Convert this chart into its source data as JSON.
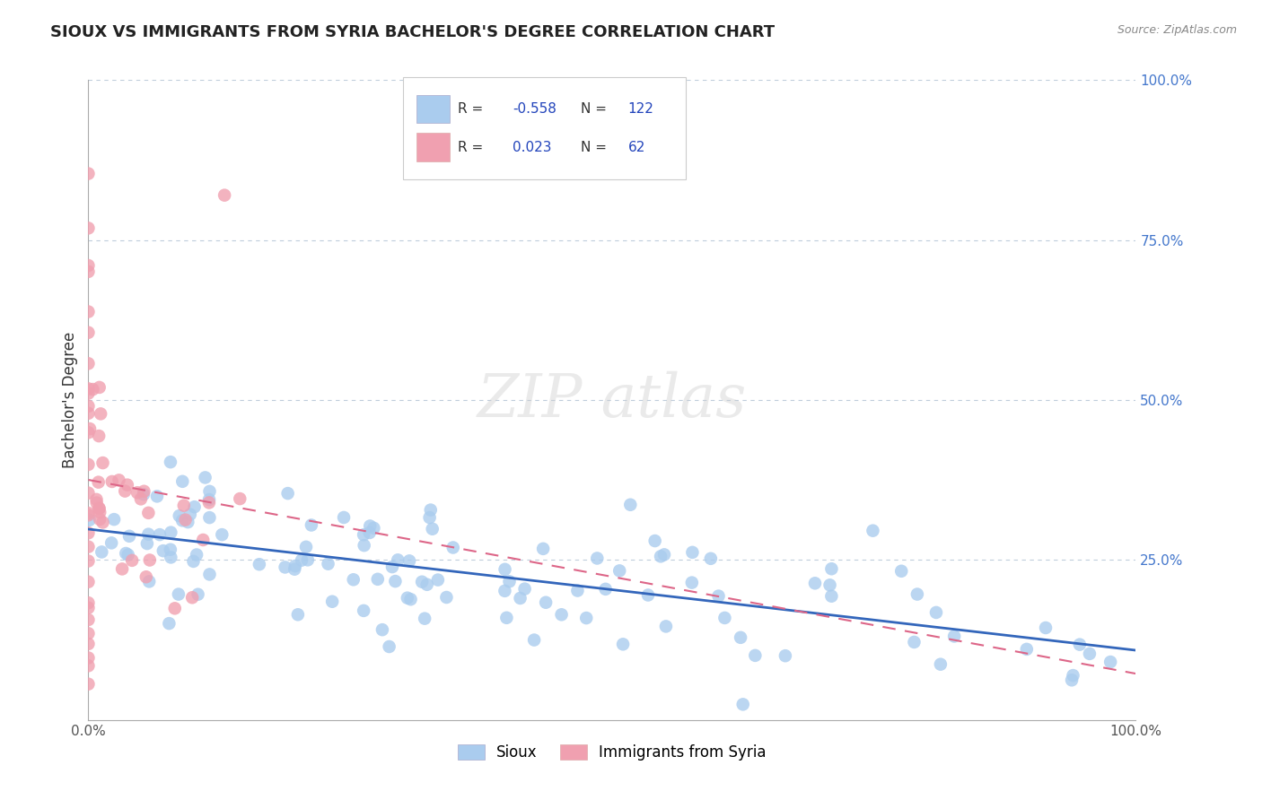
{
  "title": "SIOUX VS IMMIGRANTS FROM SYRIA BACHELOR'S DEGREE CORRELATION CHART",
  "source": "Source: ZipAtlas.com",
  "ylabel": "Bachelor's Degree",
  "sioux_R": -0.558,
  "sioux_N": 122,
  "syria_R": 0.023,
  "syria_N": 62,
  "sioux_color": "#aaccee",
  "sioux_line_color": "#3366bb",
  "syria_color": "#f0a0b0",
  "syria_line_color": "#dd6688",
  "background_color": "#ffffff",
  "grid_color": "#b8c8d8",
  "ytick_color": "#4477cc",
  "legend_R_color": "#2244bb",
  "legend_text_color": "#333333",
  "watermark_color": "#dddddd",
  "title_color": "#222222",
  "source_color": "#888888"
}
